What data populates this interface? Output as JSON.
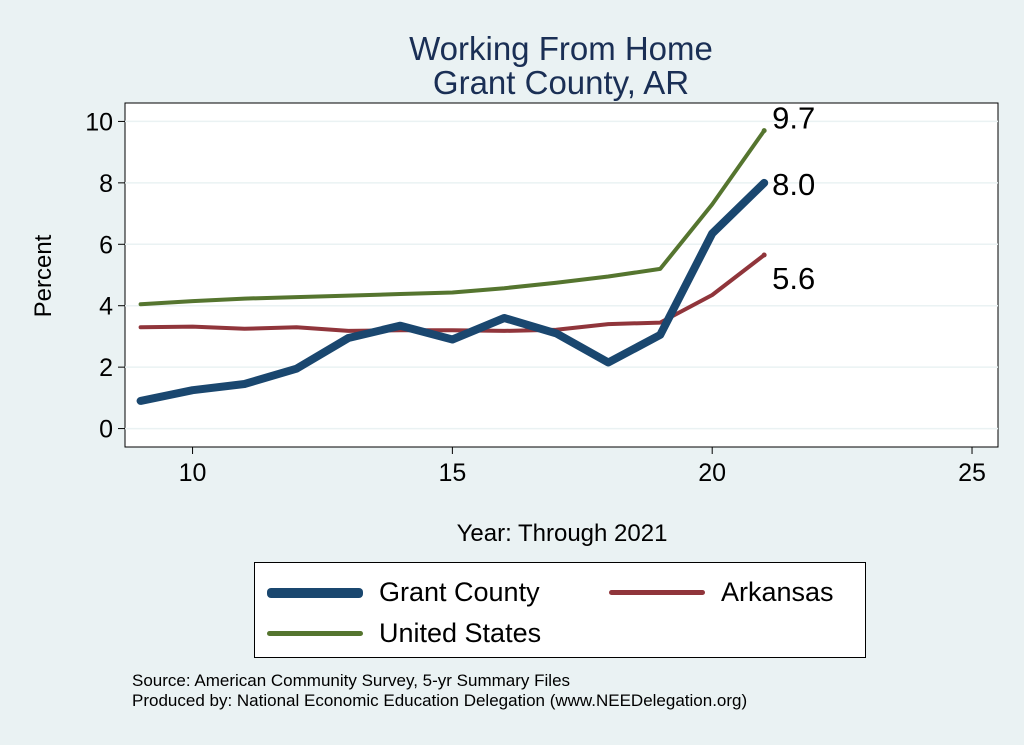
{
  "chart_data": {
    "type": "line",
    "title": "Working From Home",
    "subtitle": "Grant County, AR",
    "xlabel": "Year: Through 2021",
    "ylabel": "Percent",
    "xlim": [
      8.7,
      25.5
    ],
    "ylim": [
      -0.6,
      10.6
    ],
    "x_ticks": [
      10,
      15,
      20,
      25
    ],
    "y_ticks": [
      0,
      2,
      4,
      6,
      8,
      10
    ],
    "grid": true,
    "legend_position": "bottom",
    "series": [
      {
        "name": "Grant County",
        "color": "#1a476f",
        "x": [
          9,
          10,
          11,
          12,
          13,
          14,
          15,
          16,
          17,
          18,
          19,
          20,
          21
        ],
        "values": [
          0.9,
          1.25,
          1.45,
          1.95,
          2.95,
          3.35,
          2.9,
          3.6,
          3.1,
          2.15,
          3.05,
          6.35,
          8.0
        ],
        "end_label": "8.0"
      },
      {
        "name": "Arkansas",
        "color": "#90353b",
        "x": [
          9,
          10,
          11,
          12,
          13,
          14,
          15,
          16,
          17,
          18,
          19,
          20,
          21
        ],
        "values": [
          3.3,
          3.32,
          3.25,
          3.3,
          3.18,
          3.2,
          3.2,
          3.18,
          3.22,
          3.4,
          3.45,
          4.35,
          5.65
        ],
        "end_label": "5.6"
      },
      {
        "name": "United States",
        "color": "#55752f",
        "x": [
          9,
          10,
          11,
          12,
          13,
          14,
          15,
          16,
          17,
          18,
          19,
          20,
          21
        ],
        "values": [
          4.05,
          4.15,
          4.23,
          4.28,
          4.33,
          4.38,
          4.43,
          4.57,
          4.75,
          4.95,
          5.2,
          7.3,
          9.7
        ],
        "end_label": "9.7"
      }
    ]
  },
  "legend": {
    "grant": "Grant County",
    "arkansas": "Arkansas",
    "us": "United States"
  },
  "source": {
    "line1": "Source: American Community Survey, 5-yr Summary Files",
    "line2": "Produced by: National Economic Education Delegation (www.NEEDelegation.org)"
  }
}
